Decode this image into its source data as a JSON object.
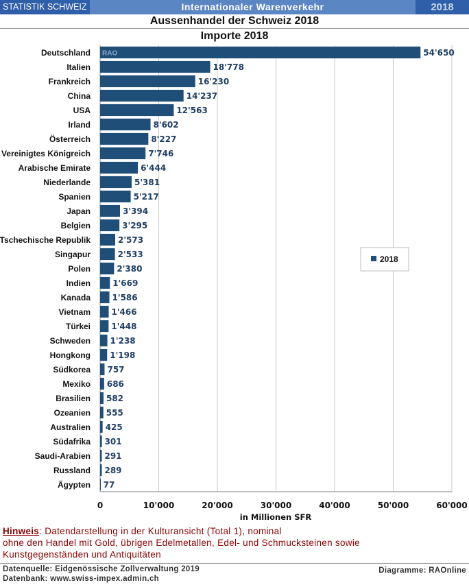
{
  "header": {
    "brand": "STATISTIK SCHWEIZ",
    "title": "Internationaler Warenverkehr",
    "year": "2018"
  },
  "chart_data": {
    "type": "bar",
    "orientation": "horizontal",
    "title": "Aussenhandel der Schweiz 2018",
    "subtitle": "Importe 2018",
    "xlabel": "in Millionen SFR",
    "ylabel": "",
    "xlim": [
      0,
      60000
    ],
    "x_ticks": [
      0,
      10000,
      20000,
      30000,
      40000,
      50000,
      60000
    ],
    "x_tick_labels": [
      "0",
      "10'000",
      "20'000",
      "30'000",
      "40'000",
      "50'000",
      "60'000"
    ],
    "grid": true,
    "legend_position": "right",
    "watermark": "RAO",
    "categories": [
      "Deutschland",
      "Italien",
      "Frankreich",
      "China",
      "USA",
      "Irland",
      "Österreich",
      "Vereinigtes Königreich",
      "Arabische Emirate",
      "Niederlande",
      "Spanien",
      "Japan",
      "Belgien",
      "Tschechische Republik",
      "Singapur",
      "Polen",
      "Indien",
      "Kanada",
      "Vietnam",
      "Türkei",
      "Schweden",
      "Hongkong",
      "Südkorea",
      "Mexiko",
      "Brasilien",
      "Ozeanien",
      "Australien",
      "Südafrika",
      "Saudi-Arabien",
      "Russland",
      "Ägypten"
    ],
    "series": [
      {
        "name": "2018",
        "color": "#1f4e79",
        "values": [
          54650,
          18778,
          16230,
          14237,
          12563,
          8602,
          8227,
          7746,
          6444,
          5381,
          5217,
          3394,
          3295,
          2573,
          2533,
          2380,
          1669,
          1586,
          1466,
          1448,
          1238,
          1198,
          757,
          686,
          582,
          555,
          425,
          301,
          291,
          289,
          77
        ],
        "labels": [
          "54'650",
          "18'778",
          "16'230",
          "14'237",
          "12'563",
          "8'602",
          "8'227",
          "7'746",
          "6'444",
          "5'381",
          "5'217",
          "3'394",
          "3'295",
          "2'573",
          "2'533",
          "2'380",
          "1'669",
          "1'586",
          "1'466",
          "1'448",
          "1'238",
          "1'198",
          "757",
          "686",
          "582",
          "555",
          "425",
          "301",
          "291",
          "289",
          "77"
        ]
      }
    ]
  },
  "note": {
    "label": "Hinweis",
    "text_line1": ": Datendarstellung in der Kulturansicht (Total 1), nominal",
    "text_line2": "ohne den Handel mit Gold, übrigen Edelmetallen, Edel- und Schmucksteinen sowie",
    "text_line3": "Kunstgegenständen und Antiquitäten"
  },
  "footer": {
    "source": "Datenquelle: Eidgenössische Zollverwaltung 2019",
    "database": "Datenbank: www.swiss-impex.admin.ch",
    "credit": "Diagramme: RAOnline"
  }
}
